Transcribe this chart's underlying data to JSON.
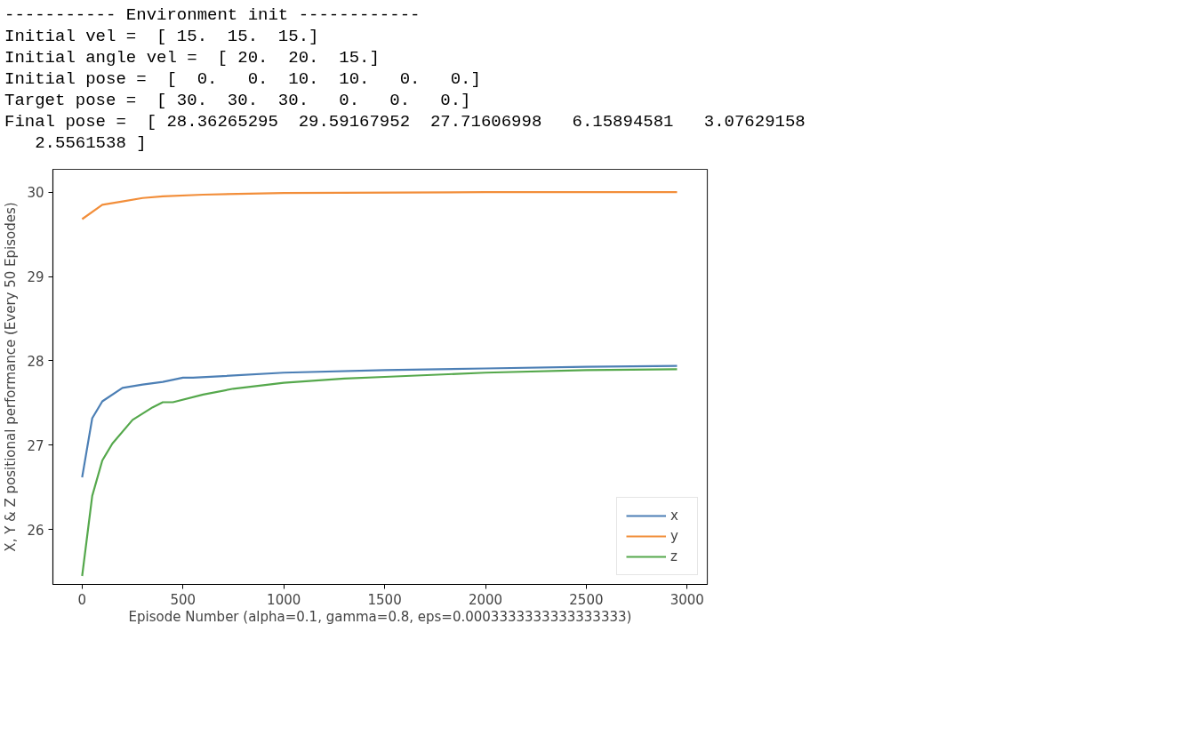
{
  "chart_data": {
    "type": "line",
    "xlabel": "Episode Number (alpha=0.1, gamma=0.8, eps=0.0003333333333333333)",
    "ylabel": "X, Y & Z positional performance (Every 50 Episodes)",
    "annotations": [
      "----------- Environment init ------------",
      "Initial vel =  [ 15.  15.  15.]",
      "Initial angle vel =  [ 20.  20.  15.]",
      "Initial pose =  [  0.   0.  10.  10.   0.   0.]",
      "Target pose =  [ 30.  30.  30.   0.   0.   0.]",
      "Final pose =  [ 28.36265295  29.59167952  27.71606998   6.15894581   3.07629158\n   2.5561538 ]"
    ],
    "xlim": [
      -145,
      3100
    ],
    "ylim": [
      25.35,
      30.27
    ],
    "xticks": [
      0,
      500,
      1000,
      1500,
      2000,
      2500,
      3000
    ],
    "yticks": [
      26,
      27,
      28,
      29,
      30
    ],
    "grid": false,
    "legend": "bottom right",
    "line_style": "solid",
    "marker": "none",
    "series": [
      {
        "name": "x",
        "color": "#4c7fb5",
        "x": [
          0,
          50,
          100,
          200,
          300,
          400,
          500,
          550,
          700,
          1000,
          1500,
          2000,
          2500,
          2950
        ],
        "values": [
          26.62,
          27.32,
          27.52,
          27.68,
          27.72,
          27.75,
          27.8,
          27.8,
          27.82,
          27.86,
          27.89,
          27.91,
          27.93,
          27.94
        ]
      },
      {
        "name": "y",
        "color": "#f28e3a",
        "x": [
          0,
          100,
          200,
          300,
          400,
          600,
          1000,
          2000,
          2950
        ],
        "values": [
          29.68,
          29.85,
          29.89,
          29.93,
          29.95,
          29.97,
          29.99,
          30.0,
          30.0
        ]
      },
      {
        "name": "z",
        "color": "#55a84c",
        "x": [
          0,
          50,
          100,
          150,
          250,
          350,
          400,
          450,
          600,
          750,
          1000,
          1300,
          1500,
          2000,
          2500,
          2950
        ],
        "values": [
          25.45,
          26.4,
          26.82,
          27.02,
          27.3,
          27.45,
          27.51,
          27.51,
          27.6,
          27.67,
          27.74,
          27.79,
          27.81,
          27.86,
          27.89,
          27.9
        ]
      }
    ]
  }
}
